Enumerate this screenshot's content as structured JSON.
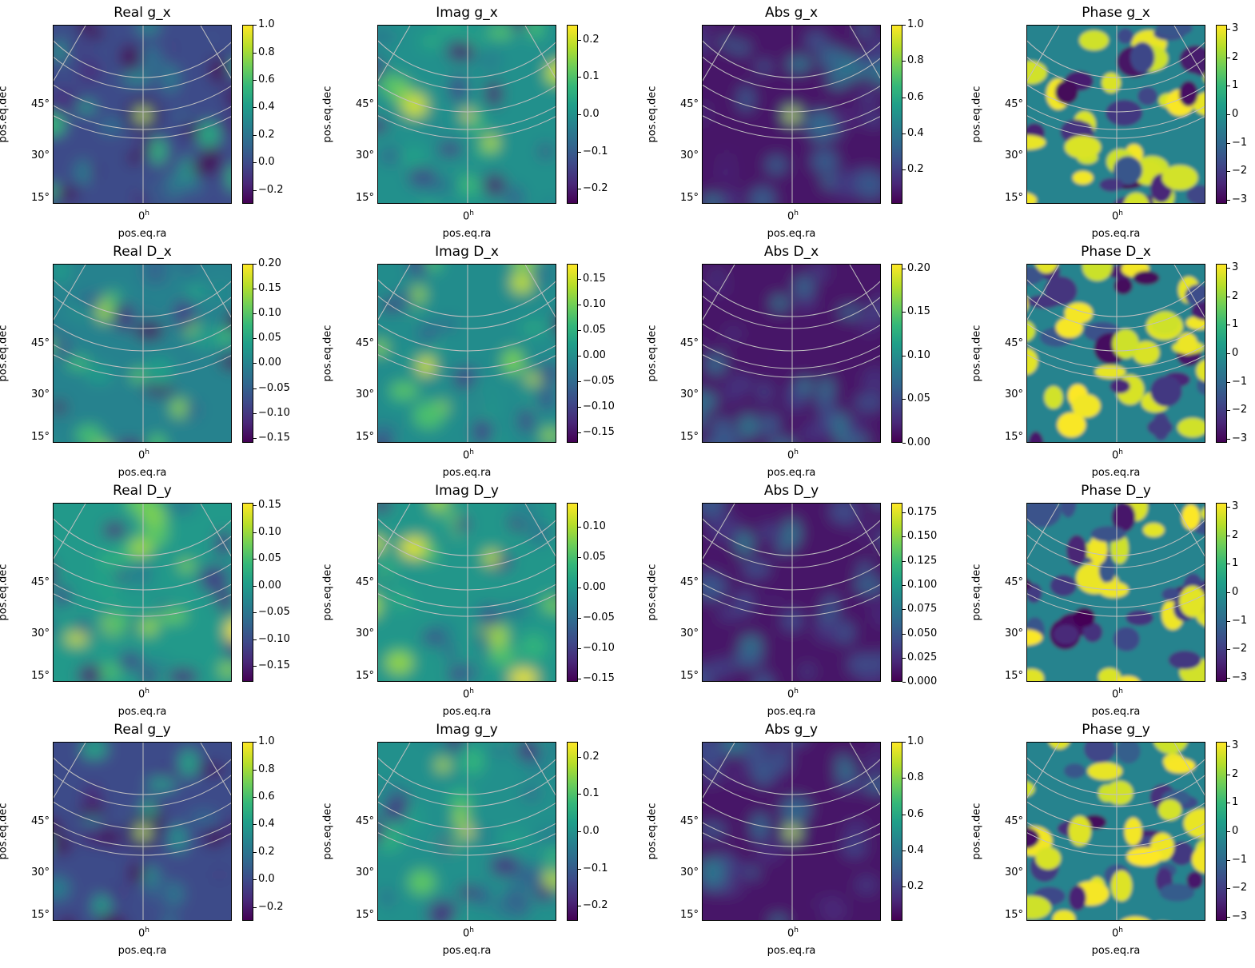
{
  "figure": {
    "xlabel": "pos.eq.ra",
    "ylabel": "pos.eq.dec",
    "ra_tick": "0",
    "ra_tick_unit": "h",
    "dec_ticks": [
      "45°",
      "30°",
      "15°"
    ],
    "colormap": [
      "#440154",
      "#482878",
      "#3e4989",
      "#31688e",
      "#26828e",
      "#1f9e89",
      "#35b779",
      "#6ece58",
      "#b5de2b",
      "#fde725"
    ],
    "grid_color": "#c0c0c0"
  },
  "chart_data": [
    {
      "type": "heatmap",
      "title": "Real g_x",
      "colorbar_ticks": [
        "1.0",
        "0.8",
        "0.6",
        "0.4",
        "0.2",
        "0.0",
        "−0.2"
      ],
      "colorbar_tick_values": [
        1.0,
        0.8,
        0.6,
        0.4,
        0.2,
        0.0,
        -0.2
      ],
      "clim": [
        -0.3,
        1.0
      ],
      "xlabel": "pos.eq.ra",
      "ylabel": "pos.eq.dec"
    },
    {
      "type": "heatmap",
      "title": "Imag g_x",
      "colorbar_ticks": [
        "0.2",
        "0.1",
        "0.0",
        "−0.1",
        "−0.2"
      ],
      "colorbar_tick_values": [
        0.2,
        0.1,
        0.0,
        -0.1,
        -0.2
      ],
      "clim": [
        -0.24,
        0.24
      ],
      "xlabel": "pos.eq.ra",
      "ylabel": "pos.eq.dec"
    },
    {
      "type": "heatmap",
      "title": "Abs g_x",
      "colorbar_ticks": [
        "1.0",
        "0.8",
        "0.6",
        "0.4",
        "0.2"
      ],
      "colorbar_tick_values": [
        1.0,
        0.8,
        0.6,
        0.4,
        0.2
      ],
      "clim": [
        0.01,
        1.0
      ],
      "xlabel": "pos.eq.ra",
      "ylabel": "pos.eq.dec"
    },
    {
      "type": "heatmap",
      "title": "Phase g_x",
      "colorbar_ticks": [
        "3",
        "2",
        "1",
        "0",
        "−1",
        "−2",
        "−3"
      ],
      "colorbar_tick_values": [
        3,
        2,
        1,
        0,
        -1,
        -2,
        -3
      ],
      "clim": [
        -3.14,
        3.14
      ],
      "xlabel": "pos.eq.ra",
      "ylabel": "pos.eq.dec"
    },
    {
      "type": "heatmap",
      "title": "Real D_x",
      "colorbar_ticks": [
        "0.20",
        "0.15",
        "0.10",
        "0.05",
        "0.00",
        "−0.05",
        "−0.10",
        "−0.15"
      ],
      "colorbar_tick_values": [
        0.2,
        0.15,
        0.1,
        0.05,
        0.0,
        -0.05,
        -0.1,
        -0.15
      ],
      "clim": [
        -0.16,
        0.2
      ],
      "xlabel": "pos.eq.ra",
      "ylabel": "pos.eq.dec"
    },
    {
      "type": "heatmap",
      "title": "Imag D_x",
      "colorbar_ticks": [
        "0.15",
        "0.10",
        "0.05",
        "0.00",
        "−0.05",
        "−0.10",
        "−0.15"
      ],
      "colorbar_tick_values": [
        0.15,
        0.1,
        0.05,
        0.0,
        -0.05,
        -0.1,
        -0.15
      ],
      "clim": [
        -0.17,
        0.18
      ],
      "xlabel": "pos.eq.ra",
      "ylabel": "pos.eq.dec"
    },
    {
      "type": "heatmap",
      "title": "Abs D_x",
      "colorbar_ticks": [
        "0.20",
        "0.15",
        "0.10",
        "0.05",
        "0.00"
      ],
      "colorbar_tick_values": [
        0.2,
        0.15,
        0.1,
        0.05,
        0.0
      ],
      "clim": [
        0.0,
        0.205
      ],
      "xlabel": "pos.eq.ra",
      "ylabel": "pos.eq.dec"
    },
    {
      "type": "heatmap",
      "title": "Phase D_x",
      "colorbar_ticks": [
        "3",
        "2",
        "1",
        "0",
        "−1",
        "−2",
        "−3"
      ],
      "colorbar_tick_values": [
        3,
        2,
        1,
        0,
        -1,
        -2,
        -3
      ],
      "clim": [
        -3.14,
        3.14
      ],
      "xlabel": "pos.eq.ra",
      "ylabel": "pos.eq.dec"
    },
    {
      "type": "heatmap",
      "title": "Real D_y",
      "colorbar_ticks": [
        "0.15",
        "0.10",
        "0.05",
        "0.00",
        "−0.05",
        "−0.10",
        "−0.15"
      ],
      "colorbar_tick_values": [
        0.15,
        0.1,
        0.05,
        0.0,
        -0.05,
        -0.1,
        -0.15
      ],
      "clim": [
        -0.18,
        0.155
      ],
      "xlabel": "pos.eq.ra",
      "ylabel": "pos.eq.dec"
    },
    {
      "type": "heatmap",
      "title": "Imag D_y",
      "colorbar_ticks": [
        "0.10",
        "0.05",
        "0.00",
        "−0.05",
        "−0.10",
        "−0.15"
      ],
      "colorbar_tick_values": [
        0.1,
        0.05,
        0.0,
        -0.05,
        -0.1,
        -0.15
      ],
      "clim": [
        -0.155,
        0.14
      ],
      "xlabel": "pos.eq.ra",
      "ylabel": "pos.eq.dec"
    },
    {
      "type": "heatmap",
      "title": "Abs D_y",
      "colorbar_ticks": [
        "0.175",
        "0.150",
        "0.125",
        "0.100",
        "0.075",
        "0.050",
        "0.025",
        "0.000"
      ],
      "colorbar_tick_values": [
        0.175,
        0.15,
        0.125,
        0.1,
        0.075,
        0.05,
        0.025,
        0.0
      ],
      "clim": [
        0.0,
        0.185
      ],
      "xlabel": "pos.eq.ra",
      "ylabel": "pos.eq.dec"
    },
    {
      "type": "heatmap",
      "title": "Phase D_y",
      "colorbar_ticks": [
        "3",
        "2",
        "1",
        "0",
        "−1",
        "−2",
        "−3"
      ],
      "colorbar_tick_values": [
        3,
        2,
        1,
        0,
        -1,
        -2,
        -3
      ],
      "clim": [
        -3.14,
        3.14
      ],
      "xlabel": "pos.eq.ra",
      "ylabel": "pos.eq.dec"
    },
    {
      "type": "heatmap",
      "title": "Real g_y",
      "colorbar_ticks": [
        "1.0",
        "0.8",
        "0.6",
        "0.4",
        "0.2",
        "0.0",
        "−0.2"
      ],
      "colorbar_tick_values": [
        1.0,
        0.8,
        0.6,
        0.4,
        0.2,
        0.0,
        -0.2
      ],
      "clim": [
        -0.3,
        1.0
      ],
      "xlabel": "pos.eq.ra",
      "ylabel": "pos.eq.dec"
    },
    {
      "type": "heatmap",
      "title": "Imag g_y",
      "colorbar_ticks": [
        "0.2",
        "0.1",
        "0.0",
        "−0.1",
        "−0.2"
      ],
      "colorbar_tick_values": [
        0.2,
        0.1,
        0.0,
        -0.1,
        -0.2
      ],
      "clim": [
        -0.24,
        0.24
      ],
      "xlabel": "pos.eq.ra",
      "ylabel": "pos.eq.dec"
    },
    {
      "type": "heatmap",
      "title": "Abs g_y",
      "colorbar_ticks": [
        "1.0",
        "0.8",
        "0.6",
        "0.4",
        "0.2"
      ],
      "colorbar_tick_values": [
        1.0,
        0.8,
        0.6,
        0.4,
        0.2
      ],
      "clim": [
        0.01,
        1.0
      ],
      "xlabel": "pos.eq.ra",
      "ylabel": "pos.eq.dec"
    },
    {
      "type": "heatmap",
      "title": "Phase g_y",
      "colorbar_ticks": [
        "3",
        "2",
        "1",
        "0",
        "−1",
        "−2",
        "−3"
      ],
      "colorbar_tick_values": [
        3,
        2,
        1,
        0,
        -1,
        -2,
        -3
      ],
      "clim": [
        -3.14,
        3.14
      ],
      "xlabel": "pos.eq.ra",
      "ylabel": "pos.eq.dec"
    }
  ]
}
